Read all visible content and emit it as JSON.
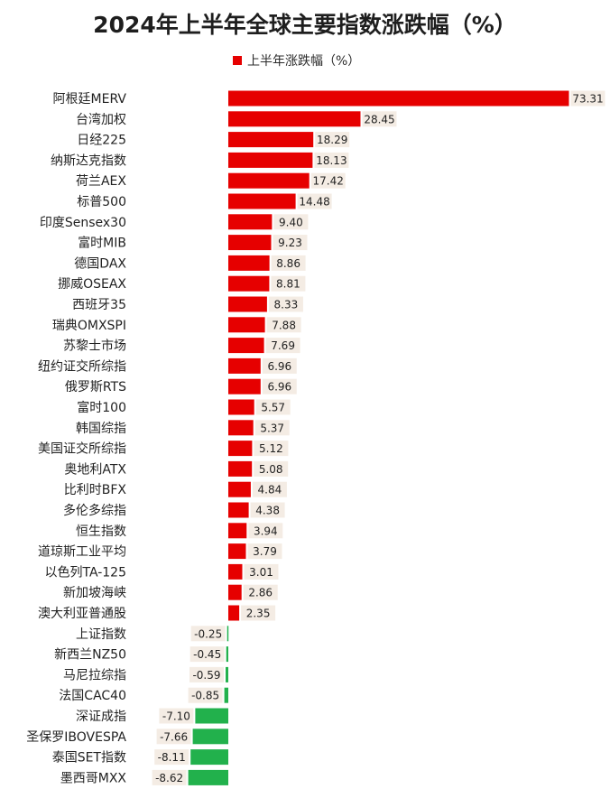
{
  "title": "2024年上半年全球主要指数涨跌幅（%）",
  "legend": {
    "label": "上半年涨跌幅（%）"
  },
  "colors": {
    "positive": "#e60000",
    "negative": "#22b14c",
    "label_bg": "#f4ece4"
  },
  "chart_data": {
    "type": "bar",
    "orientation": "horizontal",
    "title": "2024年上半年全球主要指数涨跌幅（%）",
    "xlabel": "",
    "ylabel": "",
    "grid": false,
    "legend_position": "top",
    "series": [
      {
        "name": "上半年涨跌幅（%）",
        "values": [
          73.31,
          28.45,
          18.29,
          18.13,
          17.42,
          14.48,
          9.4,
          9.23,
          8.86,
          8.81,
          8.33,
          7.88,
          7.69,
          6.96,
          6.96,
          5.57,
          5.37,
          5.12,
          5.08,
          4.84,
          4.38,
          3.94,
          3.79,
          3.01,
          2.86,
          2.35,
          -0.25,
          -0.45,
          -0.59,
          -0.85,
          -7.1,
          -7.66,
          -8.11,
          -8.62
        ]
      }
    ],
    "categories": [
      "阿根廷MERV",
      "台湾加权",
      "日经225",
      "纳斯达克指数",
      "荷兰AEX",
      "标普500",
      "印度Sensex30",
      "富时MIB",
      "德国DAX",
      "挪威OSEAX",
      "西班牙35",
      "瑞典OMXSPI",
      "苏黎士市场",
      "纽约证交所综指",
      "俄罗斯RTS",
      "富时100",
      "韩国综指",
      "美国证交所综指",
      "奥地利ATX",
      "比利时BFX",
      "多伦多综指",
      "恒生指数",
      "道琼斯工业平均",
      "以色列TA-125",
      "新加坡海峡",
      "澳大利亚普通股",
      "上证指数",
      "新西兰NZ50",
      "马尼拉综指",
      "法国CAC40",
      "深证成指",
      "圣保罗IBOVESPA",
      "泰国SET指数",
      "墨西哥MXX"
    ],
    "value_labels": [
      "73.31",
      "28.45",
      "18.29",
      "18.13",
      "17.42",
      "14.48",
      "9.40",
      "9.23",
      "8.86",
      "8.81",
      "8.33",
      "7.88",
      "7.69",
      "6.96",
      "6.96",
      "5.57",
      "5.37",
      "5.12",
      "5.08",
      "4.84",
      "4.38",
      "3.94",
      "3.79",
      "3.01",
      "2.86",
      "2.35",
      "-0.25",
      "-0.45",
      "-0.59",
      "-0.85",
      "-7.10",
      "-7.66",
      "-8.11",
      "-8.62"
    ]
  }
}
